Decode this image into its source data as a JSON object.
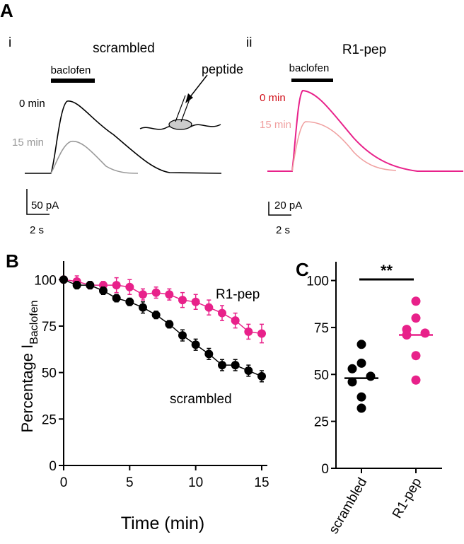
{
  "panel_a": {
    "label": "A",
    "left": {
      "label": "i",
      "title": "scrambled",
      "drug": "baclofen",
      "early": "0 min",
      "late": "15 min",
      "inset": "peptide",
      "amp_scale": "50 pA",
      "time_scale": "2 s"
    },
    "right": {
      "label": "ii",
      "title": "R1-pep",
      "drug": "baclofen",
      "early": "0 min",
      "late": "15 min",
      "amp_scale": "20 pA",
      "time_scale": "2 s"
    }
  },
  "chart_data": [
    {
      "type": "line",
      "panel_label": "B",
      "xlabel": "Time (min)",
      "ylabel": "Percentage I",
      "ylabel_subscript": "Baclofen",
      "x": [
        0,
        1,
        2,
        3,
        4,
        5,
        6,
        7,
        8,
        9,
        10,
        11,
        12,
        13,
        14,
        15
      ],
      "series": [
        {
          "name": "R1-pep",
          "color": "#e8218a",
          "values": [
            100,
            99,
            97,
            97,
            97,
            96,
            92,
            93,
            92,
            89,
            88,
            85,
            82,
            78,
            72,
            71
          ],
          "errors": [
            0,
            3,
            2,
            2,
            4,
            4,
            3,
            3,
            3,
            4,
            4,
            4,
            4,
            4,
            4,
            5
          ]
        },
        {
          "name": "scrambled",
          "color": "#000000",
          "values": [
            100,
            97,
            97,
            94,
            90,
            88,
            85,
            81,
            76,
            70,
            65,
            60,
            54,
            54,
            51,
            48
          ],
          "errors": [
            0,
            2,
            2,
            2,
            2,
            2,
            3,
            2,
            2,
            3,
            3,
            3,
            3,
            3,
            3,
            3
          ]
        }
      ],
      "xlim": [
        0,
        15
      ],
      "xticks": [
        0,
        5,
        10,
        15
      ],
      "ylim": [
        0,
        110
      ],
      "yticks": [
        0,
        25,
        50,
        75,
        100
      ]
    },
    {
      "type": "strip",
      "panel_label": "C",
      "categories": [
        "scrambled",
        "R1-pep"
      ],
      "series": [
        {
          "color": "#000000",
          "values": [
            66,
            56,
            53,
            49,
            46,
            38,
            32
          ],
          "median": 48
        },
        {
          "color": "#e8218a",
          "values": [
            89,
            80,
            74,
            72,
            71,
            60,
            47
          ],
          "median": 71
        }
      ],
      "significance": "**",
      "ylim": [
        0,
        110
      ],
      "yticks": [
        0,
        25,
        50,
        75,
        100
      ]
    }
  ]
}
